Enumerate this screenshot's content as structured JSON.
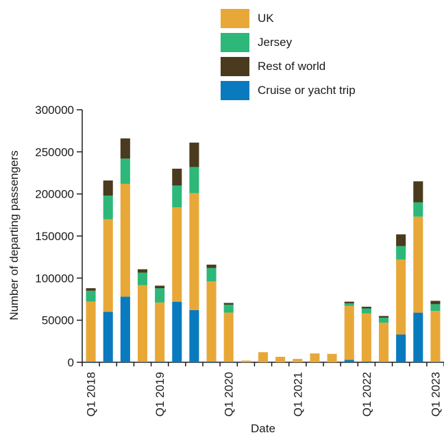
{
  "chart_data": {
    "type": "bar",
    "stacked": true,
    "xlabel": "Date",
    "ylabel": "Number of departing passengers",
    "ylim": [
      0,
      300000
    ],
    "yticks": [
      0,
      50000,
      100000,
      150000,
      200000,
      250000,
      300000
    ],
    "categories": [
      "Q1 2018",
      "Q2 2018",
      "Q3 2018",
      "Q4 2018",
      "Q1 2019",
      "Q2 2019",
      "Q3 2019",
      "Q4 2019",
      "Q1 2020",
      "Q2 2020",
      "Q3 2020",
      "Q4 2020",
      "Q1 2021",
      "Q2 2021",
      "Q3 2021",
      "Q4 2021",
      "Q1 2022",
      "Q2 2022",
      "Q3 2022",
      "Q4 2022",
      "Q1 2023"
    ],
    "xtick_labels": [
      "Q1 2018",
      "Q1 2019",
      "Q1 2020",
      "Q1 2021",
      "Q1 2022",
      "Q1 2023"
    ],
    "xtick_categories": [
      "Q1 2018",
      "Q1 2019",
      "Q1 2020",
      "Q1 2021",
      "Q1 2022",
      "Q1 2023"
    ],
    "series": [
      {
        "name": "Cruise or yacht trip",
        "color": "#0a7abf",
        "values": [
          1000,
          60000,
          78000,
          500,
          1000,
          72000,
          62000,
          1000,
          500,
          0,
          0,
          0,
          0,
          0,
          0,
          3000,
          1000,
          500,
          33000,
          59000,
          500
        ]
      },
      {
        "name": "UK",
        "color": "#e8a838",
        "values": [
          71000,
          110000,
          134000,
          91000,
          70000,
          112000,
          139000,
          95000,
          58500,
          2000,
          12000,
          6500,
          4000,
          10500,
          10000,
          64000,
          57000,
          46500,
          89000,
          114000,
          60500
        ]
      },
      {
        "name": "Jersey",
        "color": "#2db87a",
        "values": [
          13000,
          28000,
          30000,
          15000,
          17000,
          26000,
          31000,
          16000,
          9500,
          0,
          0,
          0,
          0,
          0,
          0,
          3000,
          6000,
          6000,
          16000,
          17000,
          8000
        ]
      },
      {
        "name": "Rest of world",
        "color": "#4a3b1e",
        "values": [
          3000,
          18000,
          24000,
          4000,
          3000,
          20000,
          29000,
          4000,
          2000,
          0,
          0,
          0,
          0,
          0,
          0,
          2000,
          2000,
          2000,
          14000,
          25000,
          4000
        ]
      }
    ],
    "legend": {
      "placement": "top",
      "order": [
        "UK",
        "Jersey",
        "Rest of world",
        "Cruise or yacht trip"
      ]
    }
  }
}
